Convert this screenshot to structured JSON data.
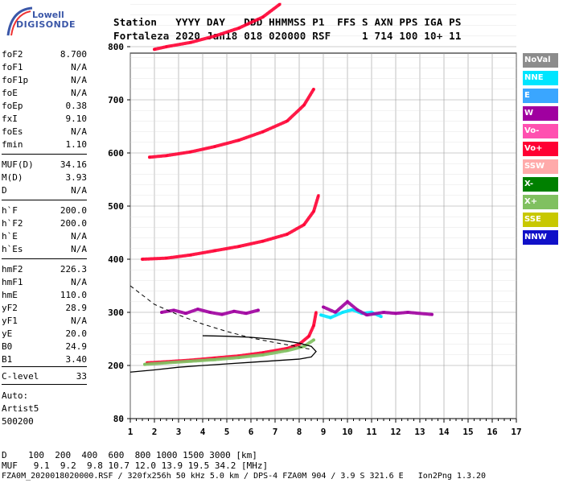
{
  "logo": {
    "line1": "Lowell",
    "line2": "DIGISONDE"
  },
  "header": {
    "line1": "Station   YYYY DAY   DDD HHMMSS P1  FFS S AXN PPS IGA PS",
    "line2": "Fortaleza 2020 Jan18 018 020000 RSF     1 714 100 10+ 11"
  },
  "params": [
    {
      "name": "foF2",
      "value": "8.700"
    },
    {
      "name": "foF1",
      "value": "N/A"
    },
    {
      "name": "foF1p",
      "value": "N/A"
    },
    {
      "name": "foE",
      "value": "N/A"
    },
    {
      "name": "foEp",
      "value": "0.38"
    },
    {
      "name": "fxI",
      "value": "9.10"
    },
    {
      "name": "foEs",
      "value": "N/A"
    },
    {
      "name": "fmin",
      "value": "1.10"
    },
    {
      "name": "MUF(D)",
      "value": "34.16"
    },
    {
      "name": "M(D)",
      "value": "3.93"
    },
    {
      "name": "D",
      "value": "N/A"
    },
    {
      "name": "h`F",
      "value": "200.0"
    },
    {
      "name": "h`F2",
      "value": "200.0"
    },
    {
      "name": "h`E",
      "value": "N/A"
    },
    {
      "name": "h`Es",
      "value": "N/A"
    },
    {
      "name": "hmF2",
      "value": "226.3"
    },
    {
      "name": "hmF1",
      "value": "N/A"
    },
    {
      "name": "hmE",
      "value": "110.0"
    },
    {
      "name": "yF2",
      "value": "28.9"
    },
    {
      "name": "yF1",
      "value": "N/A"
    },
    {
      "name": "yE",
      "value": "20.0"
    },
    {
      "name": "B0",
      "value": "24.9"
    },
    {
      "name": "B1",
      "value": "3.40"
    },
    {
      "name": "C-level",
      "value": "33"
    }
  ],
  "autoscaling": {
    "line1": "Auto:",
    "line2": "Artist5",
    "line3": "500200"
  },
  "legend": [
    {
      "label": "NoVal",
      "color": "#8c8c8c"
    },
    {
      "label": "NNE",
      "color": "#00e5ff"
    },
    {
      "label": "E",
      "color": "#3aa6ff"
    },
    {
      "label": "W",
      "color": "#a000a0"
    },
    {
      "label": "Vo-",
      "color": "#ff50b0"
    },
    {
      "label": "Vo+",
      "color": "#ff0033"
    },
    {
      "label": "SSW",
      "color": "#ffaaaa"
    },
    {
      "label": "X-",
      "color": "#008000"
    },
    {
      "label": "X+",
      "color": "#80c060"
    },
    {
      "label": "SSE",
      "color": "#c8c800"
    },
    {
      "label": "NNW",
      "color": "#1010c8"
    }
  ],
  "footer": {
    "d_row": "D    100  200  400  600  800 1000 1500 3000 [km]",
    "muf_row": "MUF   9.1  9.2  9.8 10.7 12.0 13.9 19.5 34.2 [MHz]",
    "file_row": "FZA0M_2020018020000.RSF / 320fx256h 50 kHz 5.0 km / DPS-4 FZA0M 904 / 3.9 S 321.6 E   Ion2Png 1.3.20"
  },
  "chart_data": {
    "type": "scatter",
    "xlim": [
      1,
      17
    ],
    "ylim": [
      80,
      900
    ],
    "xticks": [
      "1",
      "2",
      "3",
      "4",
      "5",
      "6",
      "7",
      "8",
      "9",
      "10",
      "11",
      "12",
      "13",
      "14",
      "15",
      "16",
      "17"
    ],
    "yticks": [
      "80",
      "200",
      "300",
      "400",
      "500",
      "600",
      "700",
      "800",
      "900"
    ],
    "grid": true,
    "traces": [
      {
        "name": "Vo+",
        "color": "#ff0033",
        "x": [
          1.7,
          2.5,
          3.5,
          4.5,
          5.5,
          6.5,
          7.5,
          8.0,
          8.4,
          8.6,
          8.7
        ],
        "y": [
          205,
          207,
          210,
          214,
          218,
          224,
          232,
          240,
          255,
          275,
          300
        ]
      },
      {
        "name": "X+",
        "color": "#80c060",
        "x": [
          1.6,
          2.5,
          3.5,
          4.5,
          5.5,
          6.5,
          7.5,
          8.2,
          8.6
        ],
        "y": [
          202,
          205,
          208,
          211,
          215,
          220,
          228,
          236,
          248
        ]
      },
      {
        "name": "2F Vo+",
        "color": "#ff0033",
        "x": [
          1.5,
          2.5,
          3.5,
          4.5,
          5.5,
          6.5,
          7.5,
          8.2,
          8.6,
          8.8
        ],
        "y": [
          400,
          402,
          408,
          416,
          424,
          434,
          447,
          465,
          490,
          520
        ]
      },
      {
        "name": "3F Vo+",
        "color": "#ff0033",
        "x": [
          1.8,
          2.5,
          3.5,
          4.5,
          5.5,
          6.5,
          7.5,
          8.2,
          8.6
        ],
        "y": [
          592,
          595,
          602,
          612,
          624,
          640,
          660,
          690,
          720
        ]
      },
      {
        "name": "4F Vo+",
        "color": "#ff0033",
        "x": [
          2.0,
          2.5,
          3.5,
          4.5,
          5.5,
          6.5,
          7.2
        ],
        "y": [
          795,
          800,
          808,
          820,
          835,
          856,
          880
        ]
      },
      {
        "name": "Es W",
        "color": "#a000a0",
        "x": [
          2.3,
          2.8,
          3.3,
          3.8,
          4.3,
          4.8,
          5.3,
          5.8,
          6.3
        ],
        "y": [
          300,
          304,
          298,
          306,
          300,
          296,
          302,
          298,
          304
        ]
      },
      {
        "name": "Oblique NNE",
        "color": "#00e5ff",
        "x": [
          8.9,
          9.3,
          9.8,
          10.2,
          10.6,
          11.0,
          11.4
        ],
        "y": [
          295,
          290,
          300,
          305,
          298,
          300,
          292
        ]
      },
      {
        "name": "Oblique W",
        "color": "#a000a0",
        "x": [
          9.0,
          9.5,
          10.0,
          10.4,
          10.8,
          11.5,
          12.0,
          12.5,
          13.5
        ],
        "y": [
          310,
          300,
          320,
          305,
          295,
          300,
          298,
          300,
          296
        ]
      }
    ],
    "profile_solid": {
      "x": [
        1.0,
        2.0,
        3.0,
        4.0,
        5.0,
        6.0,
        7.0,
        8.0,
        8.5,
        8.7,
        8.5,
        8.0,
        7.0,
        6.0,
        5.0,
        4.0
      ],
      "y": [
        185,
        190,
        196,
        200,
        203,
        206,
        209,
        212,
        216,
        226.3,
        236,
        242,
        249,
        253,
        255,
        256
      ]
    },
    "profile_dashed": {
      "x": [
        1.0,
        2.0,
        3.0,
        4.0,
        5.0,
        6.0,
        7.0,
        8.0,
        8.5
      ],
      "y": [
        350,
        315,
        295,
        278,
        264,
        252,
        243,
        235,
        230
      ]
    }
  }
}
